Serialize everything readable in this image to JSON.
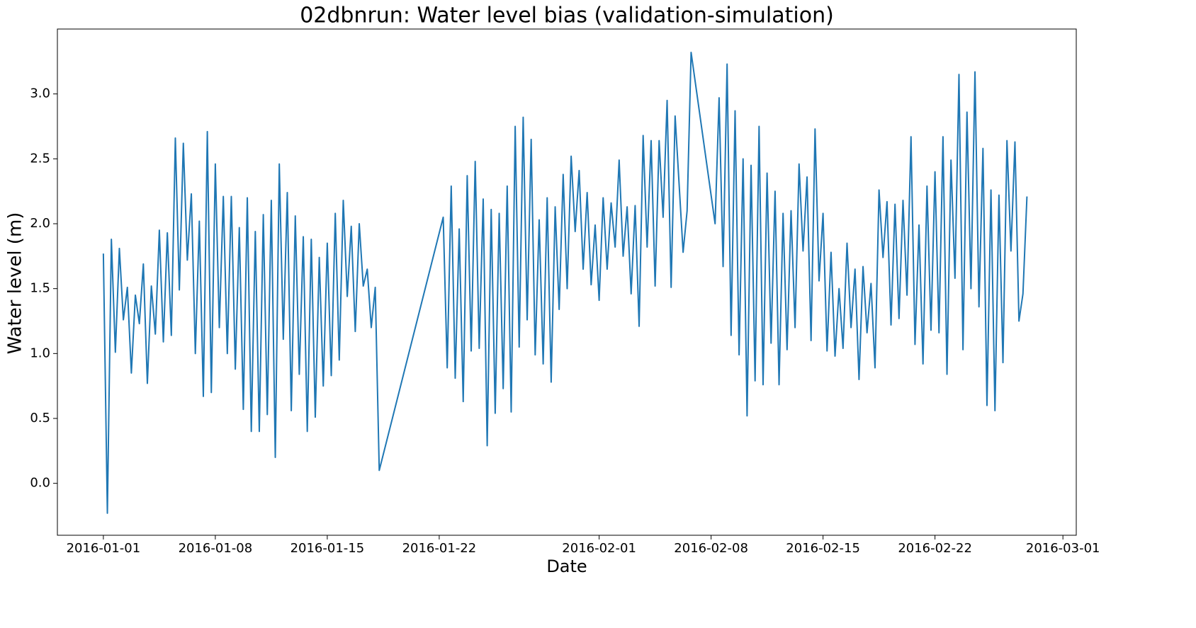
{
  "chart_data": {
    "type": "line",
    "title": "02dbnrun: Water level bias (validation-simulation)",
    "x_label": "Date",
    "y_label": "Water level (m)",
    "xlim": [
      "2015-12-29T03:00",
      "2016-03-01T20:00"
    ],
    "xticks": [
      "2016-01-01",
      "2016-01-08",
      "2016-01-15",
      "2016-01-22",
      "2016-02-01",
      "2016-02-08",
      "2016-02-15",
      "2016-02-22",
      "2016-03-01"
    ],
    "ylim": [
      -0.4,
      3.5
    ],
    "yticks": [
      {
        "value": 0,
        "label": "0.0"
      },
      {
        "value": 0.5,
        "label": "0.5"
      },
      {
        "value": 1,
        "label": "1.0"
      },
      {
        "value": 1.5,
        "label": "1.5"
      },
      {
        "value": 2,
        "label": "2.0"
      },
      {
        "value": 2.5,
        "label": "2.5"
      },
      {
        "value": 3,
        "label": "3.0"
      }
    ],
    "x": [
      "2016-01-01T00:00",
      "2016-01-01T06:00",
      "2016-01-01T12:00",
      "2016-01-01T18:00",
      "2016-01-02T00:00",
      "2016-01-02T06:00",
      "2016-01-02T12:00",
      "2016-01-02T18:00",
      "2016-01-03T00:00",
      "2016-01-03T06:00",
      "2016-01-03T12:00",
      "2016-01-03T18:00",
      "2016-01-04T00:00",
      "2016-01-04T06:00",
      "2016-01-04T12:00",
      "2016-01-04T18:00",
      "2016-01-05T00:00",
      "2016-01-05T06:00",
      "2016-01-05T12:00",
      "2016-01-05T18:00",
      "2016-01-06T00:00",
      "2016-01-06T06:00",
      "2016-01-06T12:00",
      "2016-01-06T18:00",
      "2016-01-07T00:00",
      "2016-01-07T06:00",
      "2016-01-07T12:00",
      "2016-01-07T18:00",
      "2016-01-08T00:00",
      "2016-01-08T06:00",
      "2016-01-08T12:00",
      "2016-01-08T18:00",
      "2016-01-09T00:00",
      "2016-01-09T06:00",
      "2016-01-09T12:00",
      "2016-01-09T18:00",
      "2016-01-10T00:00",
      "2016-01-10T06:00",
      "2016-01-10T12:00",
      "2016-01-10T18:00",
      "2016-01-11T00:00",
      "2016-01-11T06:00",
      "2016-01-11T12:00",
      "2016-01-11T18:00",
      "2016-01-12T00:00",
      "2016-01-12T06:00",
      "2016-01-12T12:00",
      "2016-01-12T18:00",
      "2016-01-13T00:00",
      "2016-01-13T06:00",
      "2016-01-13T12:00",
      "2016-01-13T18:00",
      "2016-01-14T00:00",
      "2016-01-14T06:00",
      "2016-01-14T12:00",
      "2016-01-14T18:00",
      "2016-01-15T00:00",
      "2016-01-15T06:00",
      "2016-01-15T12:00",
      "2016-01-15T18:00",
      "2016-01-16T00:00",
      "2016-01-16T06:00",
      "2016-01-16T12:00",
      "2016-01-16T18:00",
      "2016-01-17T00:00",
      "2016-01-17T06:00",
      "2016-01-17T12:00",
      "2016-01-17T18:00",
      "2016-01-18T00:00",
      "2016-01-18T06:00",
      "2016-01-22T06:00",
      "2016-01-22T12:00",
      "2016-01-22T18:00",
      "2016-01-23T00:00",
      "2016-01-23T06:00",
      "2016-01-23T12:00",
      "2016-01-23T18:00",
      "2016-01-24T00:00",
      "2016-01-24T06:00",
      "2016-01-24T12:00",
      "2016-01-24T18:00",
      "2016-01-25T00:00",
      "2016-01-25T06:00",
      "2016-01-25T12:00",
      "2016-01-25T18:00",
      "2016-01-26T00:00",
      "2016-01-26T06:00",
      "2016-01-26T12:00",
      "2016-01-26T18:00",
      "2016-01-27T00:00",
      "2016-01-27T06:00",
      "2016-01-27T12:00",
      "2016-01-27T18:00",
      "2016-01-28T00:00",
      "2016-01-28T06:00",
      "2016-01-28T12:00",
      "2016-01-28T18:00",
      "2016-01-29T00:00",
      "2016-01-29T06:00",
      "2016-01-29T12:00",
      "2016-01-29T18:00",
      "2016-01-30T00:00",
      "2016-01-30T06:00",
      "2016-01-30T12:00",
      "2016-01-30T18:00",
      "2016-01-31T00:00",
      "2016-01-31T06:00",
      "2016-01-31T12:00",
      "2016-01-31T18:00",
      "2016-02-01T00:00",
      "2016-02-01T06:00",
      "2016-02-01T12:00",
      "2016-02-01T18:00",
      "2016-02-02T00:00",
      "2016-02-02T06:00",
      "2016-02-02T12:00",
      "2016-02-02T18:00",
      "2016-02-03T00:00",
      "2016-02-03T06:00",
      "2016-02-03T12:00",
      "2016-02-03T18:00",
      "2016-02-04T00:00",
      "2016-02-04T06:00",
      "2016-02-04T12:00",
      "2016-02-04T18:00",
      "2016-02-05T00:00",
      "2016-02-05T06:00",
      "2016-02-05T12:00",
      "2016-02-05T18:00",
      "2016-02-06T06:00",
      "2016-02-06T12:00",
      "2016-02-06T18:00",
      "2016-02-08T06:00",
      "2016-02-08T12:00",
      "2016-02-08T18:00",
      "2016-02-09T00:00",
      "2016-02-09T06:00",
      "2016-02-09T12:00",
      "2016-02-09T18:00",
      "2016-02-10T00:00",
      "2016-02-10T06:00",
      "2016-02-10T12:00",
      "2016-02-10T18:00",
      "2016-02-11T00:00",
      "2016-02-11T06:00",
      "2016-02-11T12:00",
      "2016-02-11T18:00",
      "2016-02-12T00:00",
      "2016-02-12T06:00",
      "2016-02-12T12:00",
      "2016-02-12T18:00",
      "2016-02-13T00:00",
      "2016-02-13T06:00",
      "2016-02-13T12:00",
      "2016-02-13T18:00",
      "2016-02-14T00:00",
      "2016-02-14T06:00",
      "2016-02-14T12:00",
      "2016-02-14T18:00",
      "2016-02-15T00:00",
      "2016-02-15T06:00",
      "2016-02-15T12:00",
      "2016-02-15T18:00",
      "2016-02-16T00:00",
      "2016-02-16T06:00",
      "2016-02-16T12:00",
      "2016-02-16T18:00",
      "2016-02-17T00:00",
      "2016-02-17T06:00",
      "2016-02-17T12:00",
      "2016-02-17T18:00",
      "2016-02-18T00:00",
      "2016-02-18T06:00",
      "2016-02-18T12:00",
      "2016-02-18T18:00",
      "2016-02-19T00:00",
      "2016-02-19T06:00",
      "2016-02-19T12:00",
      "2016-02-19T18:00",
      "2016-02-20T00:00",
      "2016-02-20T06:00",
      "2016-02-20T12:00",
      "2016-02-20T18:00",
      "2016-02-21T00:00",
      "2016-02-21T06:00",
      "2016-02-21T12:00",
      "2016-02-21T18:00",
      "2016-02-22T00:00",
      "2016-02-22T06:00",
      "2016-02-22T12:00",
      "2016-02-22T18:00",
      "2016-02-23T00:00",
      "2016-02-23T06:00",
      "2016-02-23T12:00",
      "2016-02-23T18:00",
      "2016-02-24T00:00",
      "2016-02-24T06:00",
      "2016-02-24T12:00",
      "2016-02-24T18:00",
      "2016-02-25T00:00",
      "2016-02-25T06:00",
      "2016-02-25T12:00",
      "2016-02-25T18:00",
      "2016-02-26T00:00",
      "2016-02-26T06:00",
      "2016-02-26T12:00",
      "2016-02-26T18:00",
      "2016-02-27T00:00",
      "2016-02-27T06:00",
      "2016-02-27T12:00",
      "2016-02-27T18:00"
    ],
    "values": [
      1.77,
      -0.23,
      1.88,
      1.01,
      1.81,
      1.26,
      1.51,
      0.85,
      1.45,
      1.23,
      1.69,
      0.77,
      1.52,
      1.15,
      1.95,
      1.09,
      1.93,
      1.14,
      2.66,
      1.49,
      2.62,
      1.72,
      2.23,
      1.0,
      2.02,
      0.67,
      2.71,
      0.7,
      2.46,
      1.2,
      2.21,
      1.0,
      2.21,
      0.88,
      1.97,
      0.57,
      2.2,
      0.4,
      1.94,
      0.4,
      2.07,
      0.53,
      2.18,
      0.2,
      2.46,
      1.11,
      2.24,
      0.56,
      2.06,
      0.84,
      1.9,
      0.4,
      1.88,
      0.51,
      1.74,
      0.75,
      1.85,
      0.83,
      2.08,
      0.95,
      2.18,
      1.44,
      1.98,
      1.17,
      2.0,
      1.52,
      1.65,
      1.2,
      1.51,
      0.1,
      2.05,
      0.89,
      2.29,
      0.81,
      1.96,
      0.63,
      2.37,
      1.02,
      2.48,
      1.04,
      2.19,
      0.29,
      2.11,
      0.54,
      2.08,
      0.73,
      2.29,
      0.55,
      2.75,
      1.05,
      2.82,
      1.26,
      2.65,
      0.99,
      2.03,
      0.92,
      2.2,
      0.78,
      2.13,
      1.34,
      2.38,
      1.5,
      2.52,
      1.94,
      2.41,
      1.65,
      2.24,
      1.53,
      1.99,
      1.41,
      2.2,
      1.65,
      2.16,
      1.82,
      2.49,
      1.75,
      2.13,
      1.46,
      2.14,
      1.21,
      2.68,
      1.82,
      2.64,
      1.52,
      2.64,
      2.05,
      2.95,
      1.51,
      2.83,
      1.78,
      2.1,
      3.32,
      2.0,
      2.97,
      1.67,
      3.23,
      1.14,
      2.87,
      0.99,
      2.5,
      0.52,
      2.45,
      0.79,
      2.75,
      0.76,
      2.39,
      1.08,
      2.25,
      0.76,
      2.08,
      1.03,
      2.1,
      1.2,
      2.46,
      1.79,
      2.36,
      1.1,
      2.73,
      1.56,
      2.08,
      1.02,
      1.78,
      0.98,
      1.5,
      1.04,
      1.85,
      1.2,
      1.65,
      0.8,
      1.67,
      1.16,
      1.54,
      0.89,
      2.26,
      1.74,
      2.17,
      1.22,
      2.15,
      1.27,
      2.18,
      1.45,
      2.67,
      1.07,
      1.99,
      0.92,
      2.29,
      1.18,
      2.4,
      1.16,
      2.67,
      0.84,
      2.49,
      1.58,
      3.15,
      1.03,
      2.86,
      1.5,
      3.17,
      1.36,
      2.58,
      0.6,
      2.26,
      0.56,
      2.22,
      0.93,
      2.64,
      1.79,
      2.63,
      1.25,
      1.46,
      2.21
    ],
    "color": "#1f77b4",
    "grid": false
  }
}
